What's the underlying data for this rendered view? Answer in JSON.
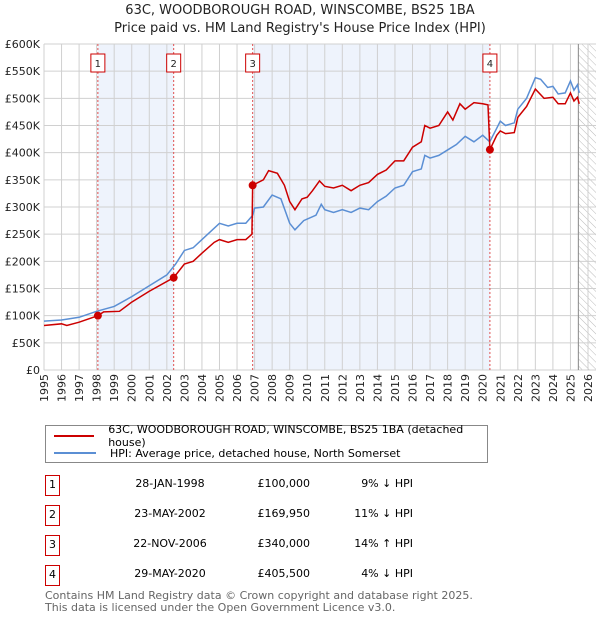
{
  "title_line1": "63C, WOODBOROUGH ROAD, WINSCOMBE, BS25 1BA",
  "title_line2": "Price paid vs. HM Land Registry's House Price Index (HPI)",
  "chart_data": {
    "type": "line",
    "title": "63C, WOODBOROUGH ROAD, WINSCOMBE, BS25 1BA — Price paid vs. HM Land Registry's House Price Index (HPI)",
    "xlim": [
      1995,
      2026
    ],
    "ylim": [
      0,
      600000
    ],
    "y_ticks": [
      0,
      50000,
      100000,
      150000,
      200000,
      250000,
      300000,
      350000,
      400000,
      450000,
      500000,
      550000,
      600000
    ],
    "y_tick_labels": [
      "£0",
      "£50K",
      "£100K",
      "£150K",
      "£200K",
      "£250K",
      "£300K",
      "£350K",
      "£400K",
      "£450K",
      "£500K",
      "£550K",
      "£600K"
    ],
    "x_ticks": [
      1995,
      1996,
      1997,
      1998,
      1999,
      2000,
      2001,
      2002,
      2003,
      2004,
      2005,
      2006,
      2007,
      2008,
      2009,
      2010,
      2011,
      2012,
      2013,
      2014,
      2015,
      2016,
      2017,
      2018,
      2019,
      2020,
      2021,
      2022,
      2023,
      2024,
      2025,
      2026
    ],
    "grid": true,
    "series": [
      {
        "name": "63C, WOODBOROUGH ROAD, WINSCOMBE, BS25 1BA (detached house)",
        "color": "#cc0000",
        "points": [
          [
            1995,
            82
          ],
          [
            1996,
            85
          ],
          [
            1996.3,
            82
          ],
          [
            1997,
            88
          ],
          [
            1998.07,
            100
          ],
          [
            1998.4,
            107
          ],
          [
            1999.3,
            108
          ],
          [
            2000,
            125
          ],
          [
            2001,
            145
          ],
          [
            2002.39,
            170
          ],
          [
            2003,
            195
          ],
          [
            2003.5,
            200
          ],
          [
            2004,
            215
          ],
          [
            2004.7,
            235
          ],
          [
            2005,
            240
          ],
          [
            2005.5,
            235
          ],
          [
            2006,
            240
          ],
          [
            2006.5,
            240
          ],
          [
            2006.85,
            250
          ],
          [
            2006.89,
            340
          ],
          [
            2007.5,
            350
          ],
          [
            2007.8,
            367
          ],
          [
            2008.3,
            362
          ],
          [
            2008.7,
            340
          ],
          [
            2009,
            310
          ],
          [
            2009.3,
            295
          ],
          [
            2009.7,
            315
          ],
          [
            2010,
            318
          ],
          [
            2010.3,
            330
          ],
          [
            2010.7,
            348
          ],
          [
            2011,
            338
          ],
          [
            2011.5,
            335
          ],
          [
            2012,
            340
          ],
          [
            2012.5,
            330
          ],
          [
            2013,
            340
          ],
          [
            2013.5,
            345
          ],
          [
            2014,
            360
          ],
          [
            2014.5,
            368
          ],
          [
            2015,
            385
          ],
          [
            2015.5,
            385
          ],
          [
            2016,
            410
          ],
          [
            2016.5,
            420
          ],
          [
            2016.7,
            450
          ],
          [
            2017,
            445
          ],
          [
            2017.5,
            450
          ],
          [
            2018,
            475
          ],
          [
            2018.3,
            460
          ],
          [
            2018.7,
            490
          ],
          [
            2019,
            480
          ],
          [
            2019.5,
            492
          ],
          [
            2020,
            490
          ],
          [
            2020.3,
            488
          ],
          [
            2020.41,
            405.5
          ],
          [
            2020.8,
            432
          ],
          [
            2021,
            440
          ],
          [
            2021.3,
            435
          ],
          [
            2021.8,
            437
          ],
          [
            2022,
            465
          ],
          [
            2022.5,
            485
          ],
          [
            2023,
            517
          ],
          [
            2023.5,
            500
          ],
          [
            2024,
            502
          ],
          [
            2024.3,
            490
          ],
          [
            2024.7,
            490
          ],
          [
            2025,
            510
          ],
          [
            2025.2,
            495
          ],
          [
            2025.4,
            502
          ],
          [
            2025.5,
            490
          ]
        ]
      },
      {
        "name": "HPI: Average price, detached house, North Somerset",
        "color": "#5b8fd4",
        "points": [
          [
            1995,
            90
          ],
          [
            1996,
            92
          ],
          [
            1997,
            97
          ],
          [
            1998,
            108
          ],
          [
            1999,
            117
          ],
          [
            2000,
            135
          ],
          [
            2001,
            155
          ],
          [
            2002,
            175
          ],
          [
            2002.5,
            195
          ],
          [
            2003,
            220
          ],
          [
            2003.5,
            225
          ],
          [
            2004,
            240
          ],
          [
            2004.5,
            255
          ],
          [
            2005,
            270
          ],
          [
            2005.5,
            265
          ],
          [
            2006,
            270
          ],
          [
            2006.5,
            270
          ],
          [
            2006.9,
            285
          ],
          [
            2007,
            298
          ],
          [
            2007.5,
            300
          ],
          [
            2008,
            322
          ],
          [
            2008.5,
            315
          ],
          [
            2009,
            270
          ],
          [
            2009.3,
            258
          ],
          [
            2009.8,
            275
          ],
          [
            2010.5,
            285
          ],
          [
            2010.8,
            305
          ],
          [
            2011,
            295
          ],
          [
            2011.5,
            290
          ],
          [
            2012,
            295
          ],
          [
            2012.5,
            290
          ],
          [
            2013,
            298
          ],
          [
            2013.5,
            295
          ],
          [
            2014,
            310
          ],
          [
            2014.5,
            320
          ],
          [
            2015,
            335
          ],
          [
            2015.5,
            340
          ],
          [
            2016,
            365
          ],
          [
            2016.5,
            370
          ],
          [
            2016.7,
            395
          ],
          [
            2017,
            390
          ],
          [
            2017.5,
            395
          ],
          [
            2018,
            405
          ],
          [
            2018.5,
            415
          ],
          [
            2019,
            430
          ],
          [
            2019.5,
            420
          ],
          [
            2020,
            432
          ],
          [
            2020.4,
            420
          ],
          [
            2020.8,
            445
          ],
          [
            2021,
            458
          ],
          [
            2021.3,
            450
          ],
          [
            2021.8,
            455
          ],
          [
            2022,
            480
          ],
          [
            2022.5,
            500
          ],
          [
            2023,
            538
          ],
          [
            2023.3,
            535
          ],
          [
            2023.7,
            520
          ],
          [
            2024,
            522
          ],
          [
            2024.3,
            508
          ],
          [
            2024.7,
            510
          ],
          [
            2025,
            532
          ],
          [
            2025.2,
            515
          ],
          [
            2025.4,
            525
          ],
          [
            2025.5,
            510
          ]
        ]
      }
    ],
    "sales": [
      {
        "label": "1",
        "x": 1998.07,
        "y": 100000
      },
      {
        "label": "2",
        "x": 2002.39,
        "y": 169950
      },
      {
        "label": "3",
        "x": 2006.89,
        "y": 340000
      },
      {
        "label": "4",
        "x": 2020.41,
        "y": 405500
      }
    ],
    "shaded_ranges": [
      [
        1998.07,
        2002.39
      ],
      [
        2006.89,
        2020.41
      ]
    ],
    "hatched_from": 2025.45
  },
  "legend": [
    {
      "label": "63C, WOODBOROUGH ROAD, WINSCOMBE, BS25 1BA (detached house)",
      "color": "#cc0000"
    },
    {
      "label": "HPI: Average price, detached house, North Somerset",
      "color": "#5b8fd4"
    }
  ],
  "transactions": [
    {
      "num": "1",
      "date": "28-JAN-1998",
      "price": "£100,000",
      "hpi": "9% ↓ HPI"
    },
    {
      "num": "2",
      "date": "23-MAY-2002",
      "price": "£169,950",
      "hpi": "11% ↓ HPI"
    },
    {
      "num": "3",
      "date": "22-NOV-2006",
      "price": "£340,000",
      "hpi": "14% ↑ HPI"
    },
    {
      "num": "4",
      "date": "29-MAY-2020",
      "price": "£405,500",
      "hpi": "4% ↓ HPI"
    }
  ],
  "footer_line1": "Contains HM Land Registry data © Crown copyright and database right 2025.",
  "footer_line2": "This data is licensed under the Open Government Licence v3.0."
}
